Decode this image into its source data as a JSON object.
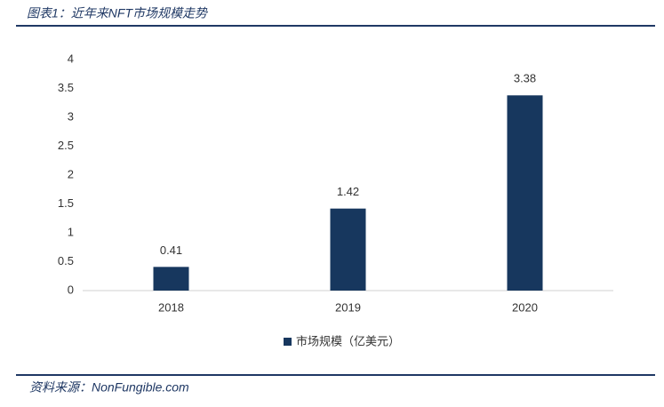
{
  "chart_data": {
    "type": "bar",
    "title": "图表1：近年来NFT市场规模走势",
    "source": "资料来源：NonFungible.com",
    "categories": [
      "2018",
      "2019",
      "2020"
    ],
    "series": [
      {
        "name": "市场规模（亿美元）",
        "color": "#17375e",
        "values": [
          0.41,
          1.42,
          3.38
        ]
      }
    ],
    "ylim": [
      0,
      4
    ],
    "yticks": [
      0,
      0.5,
      1,
      1.5,
      2,
      2.5,
      3,
      3.5,
      4
    ],
    "grid": false,
    "legend": "bottom"
  }
}
